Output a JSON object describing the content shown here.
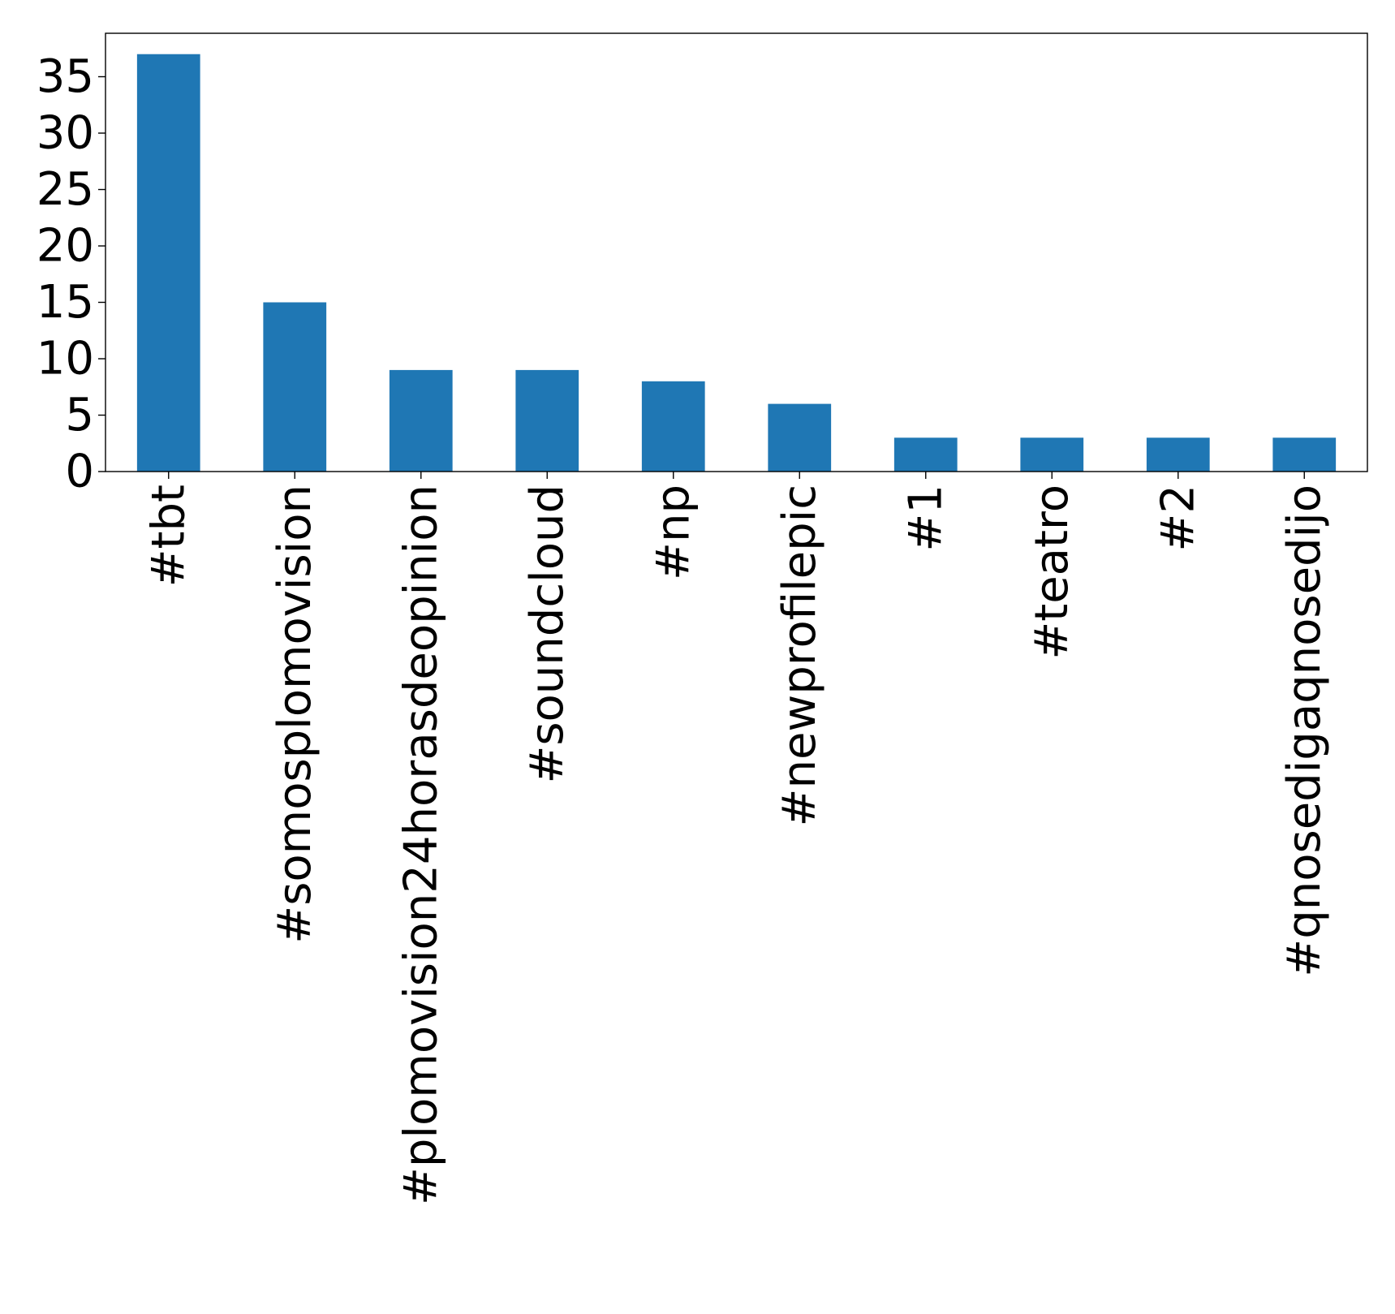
{
  "chart_data": {
    "type": "bar",
    "categories": [
      "#tbt",
      "#somosplomovision",
      "#plomovision24horasdeopinion",
      "#soundcloud",
      "#np",
      "#newprofilepic",
      "#1",
      "#teatro",
      "#2",
      "#qnosedigaqnosedijo"
    ],
    "values": [
      37,
      15,
      9,
      9,
      8,
      6,
      3,
      3,
      3,
      3
    ],
    "title": "",
    "xlabel": "",
    "ylabel": "",
    "ylim": [
      0,
      38.85
    ],
    "yticks": [
      0,
      5,
      10,
      15,
      20,
      25,
      30,
      35
    ],
    "grid": false,
    "bar_color": "#1f77b4"
  }
}
